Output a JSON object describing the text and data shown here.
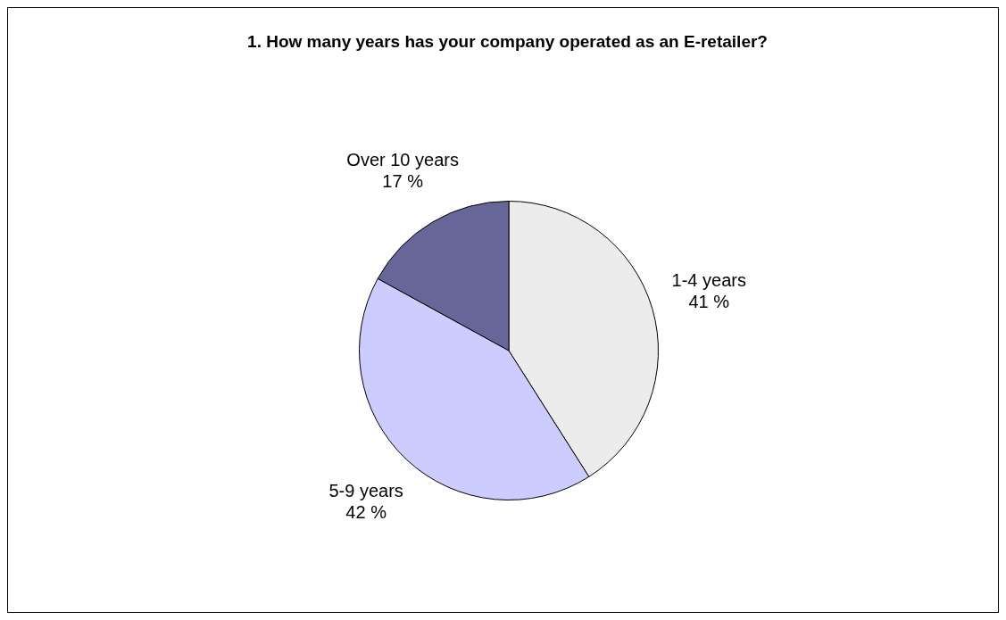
{
  "chart_data": {
    "type": "pie",
    "title": "1. How many years has your company operated as an E-retailer?",
    "categories": [
      "1-4 years",
      "5-9 years",
      "Over 10 years"
    ],
    "values": [
      41,
      42,
      17
    ],
    "colors": [
      "#ececec",
      "#ccccff",
      "#666699"
    ],
    "value_labels": [
      "41 %",
      "42 %",
      "17 %"
    ],
    "legend": false
  }
}
